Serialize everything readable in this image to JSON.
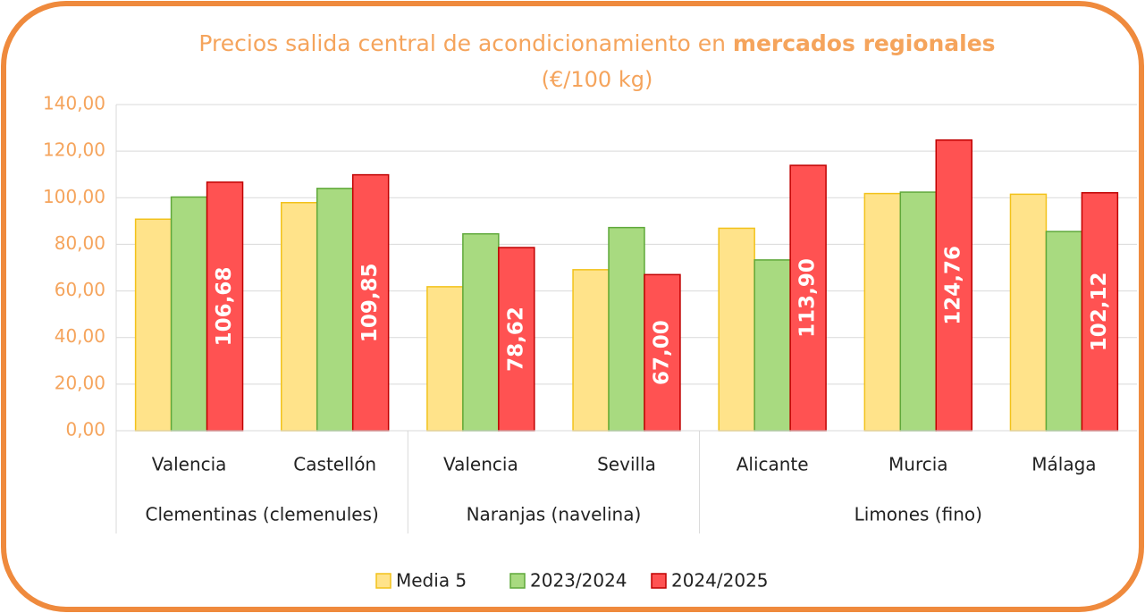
{
  "chart_data": {
    "type": "bar",
    "title_parts": [
      "Precios salida central de acondicionamiento en",
      "mercados regionales"
    ],
    "subtitle": "(€/100 kg)",
    "groups": [
      {
        "name": "Clementinas (clemenules)",
        "categories": [
          "Valencia",
          "Castellón"
        ]
      },
      {
        "name": "Naranjas (navelina)",
        "categories": [
          "Valencia",
          "Sevilla"
        ]
      },
      {
        "name": "Limones (fino)",
        "categories": [
          "Alicante",
          "Murcia",
          "Málaga"
        ]
      }
    ],
    "series": [
      {
        "name": "Media 5",
        "color": "#ffe38a",
        "stroke": "#f2c21b",
        "values": [
          90.8,
          97.9,
          61.8,
          69.1,
          86.9,
          101.8,
          101.5
        ]
      },
      {
        "name": "2023/2024",
        "color": "#a8da80",
        "stroke": "#5fa83a",
        "values": [
          100.3,
          104.0,
          84.5,
          87.2,
          73.3,
          102.4,
          85.5
        ]
      },
      {
        "name": "2024/2025",
        "color": "#ff5252",
        "stroke": "#c00000",
        "values": [
          106.68,
          109.85,
          78.62,
          67.0,
          113.9,
          124.76,
          102.12
        ],
        "value_labels": [
          "106,68",
          "109,85",
          "78,62",
          "67,00",
          "113,90",
          "124,76",
          "102,12"
        ]
      }
    ],
    "ylim": [
      0,
      140
    ],
    "yticks": [
      {
        "value": 0,
        "label": "0,00"
      },
      {
        "value": 20,
        "label": "20,00"
      },
      {
        "value": 40,
        "label": "40,00"
      },
      {
        "value": 60,
        "label": "60,00"
      },
      {
        "value": 80,
        "label": "80,00"
      },
      {
        "value": 100,
        "label": "100,00"
      },
      {
        "value": 120,
        "label": "120,00"
      },
      {
        "value": 140,
        "label": "140,00"
      }
    ],
    "grid": true,
    "legend": "bottom"
  }
}
